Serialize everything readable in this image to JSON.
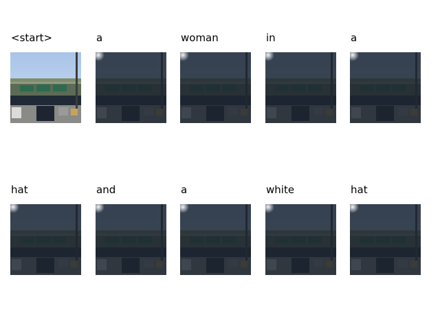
{
  "figure": {
    "words": [
      "<start>",
      "a",
      "woman",
      "in",
      "a",
      "hat",
      "and",
      "a",
      "white",
      "hat"
    ],
    "first_is_original": true
  },
  "palette": {
    "sky": "#a9c4e8",
    "sky_light": "#cfdff3",
    "bridge": "#5b6b55",
    "sign": "#2e6a4f",
    "road": "#8a8a86",
    "shadow": "#1f2a36",
    "dark_overlay": "#1c2430",
    "glow": "#ffffff"
  }
}
